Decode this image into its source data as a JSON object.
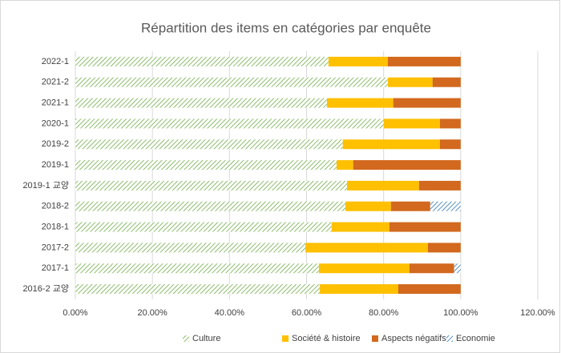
{
  "chart_data": {
    "type": "stacked-barh",
    "title": "Répartition des items en catégories par enquête",
    "categories": [
      "2022-1",
      "2021-2",
      "2021-1",
      "2020-1",
      "2019-2",
      "2019-1",
      "2019-1 교양",
      "2018-2",
      "2018-1",
      "2017-2",
      "2017-1",
      "2016-2 교양"
    ],
    "series": [
      {
        "name": "Culture",
        "color": "#70ad47",
        "hatch": true,
        "values": [
          65.7,
          81.1,
          65.3,
          80.0,
          69.4,
          67.8,
          70.5,
          70.1,
          66.5,
          59.7,
          63.2,
          63.4
        ]
      },
      {
        "name": "Société & histoire",
        "color": "#ffc000",
        "hatch": false,
        "values": [
          15.4,
          11.6,
          17.2,
          14.6,
          25.2,
          4.3,
          18.7,
          11.8,
          15.0,
          31.8,
          23.5,
          20.4
        ]
      },
      {
        "name": "Aspects négatifs",
        "color": "#d2691e",
        "hatch": false,
        "values": [
          18.9,
          7.3,
          17.5,
          5.4,
          5.4,
          27.9,
          10.8,
          10.2,
          18.5,
          8.5,
          11.6,
          16.2
        ]
      },
      {
        "name": "Economie",
        "color": "#2e75b6",
        "hatch": true,
        "values": [
          0,
          0,
          0,
          0,
          0,
          0,
          0,
          7.9,
          0,
          0,
          1.7,
          0
        ]
      }
    ],
    "xlim": [
      0,
      120
    ],
    "xticks": [
      {
        "value": 0,
        "label": "0.00%"
      },
      {
        "value": 20,
        "label": "20.00%"
      },
      {
        "value": 40,
        "label": "40.00%"
      },
      {
        "value": 60,
        "label": "60.00%"
      },
      {
        "value": 80,
        "label": "80.00%"
      },
      {
        "value": 100,
        "label": "100.00%"
      },
      {
        "value": 120,
        "label": "120.00%"
      }
    ],
    "grid": true,
    "legend": "bottom"
  }
}
